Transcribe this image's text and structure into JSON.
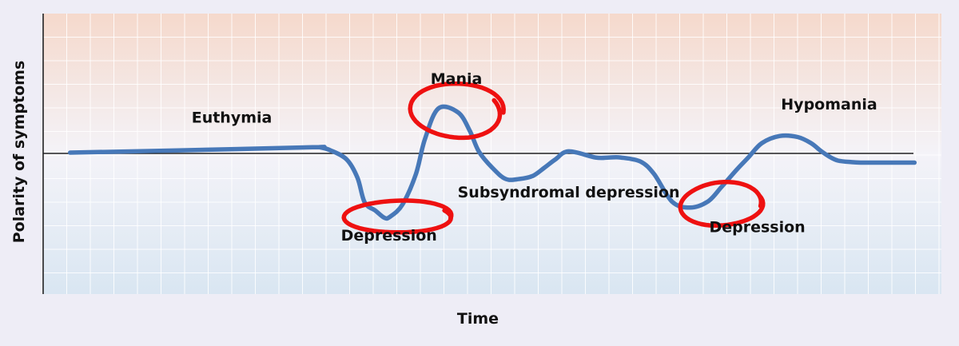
{
  "chart_data": {
    "type": "line",
    "xlabel": "Time",
    "ylabel": "Polarity of symptoms",
    "xlim": [
      0,
      100
    ],
    "ylim": [
      -100,
      100
    ],
    "grid": true,
    "background_gradient": {
      "top": "#f5d9cc",
      "middle": "#f4f3f8",
      "bottom": "#d9e6f2"
    },
    "series": [
      {
        "color": "#4778b8",
        "x": [
          3,
          15,
          30,
          30.8,
          32,
          33.8,
          35,
          35.8,
          37,
          38,
          38.6,
          40,
          41.5,
          42.5,
          44,
          46.2,
          47.5,
          48.5,
          50,
          51.5,
          53,
          54.5,
          55.8,
          57,
          58.5,
          61.5,
          63,
          64.3,
          66.5,
          68,
          70,
          72,
          74,
          75.5,
          77.2,
          78.5,
          80,
          82,
          84,
          85.5,
          86.5,
          87.5,
          88.5,
          90,
          91,
          92.5,
          95,
          97
        ],
        "y": [
          0.8,
          3,
          6,
          6,
          3,
          -6,
          -24,
          -48,
          -56,
          -63,
          -62,
          -50,
          -20,
          14,
          44,
          40,
          22,
          2,
          -14,
          -25,
          -25,
          -22,
          -14,
          -6,
          2,
          -4,
          -4,
          -4,
          -8,
          -20,
          -47,
          -53,
          -47,
          -33,
          -16,
          -4,
          10,
          17,
          16,
          10,
          3,
          -3,
          -7,
          -8.5,
          -9,
          -9,
          -9,
          -9
        ]
      }
    ],
    "annotations": [
      {
        "text": "Euthymia",
        "x": 21,
        "y": 30
      },
      {
        "text": "Mania",
        "x": 46,
        "y": 68
      },
      {
        "text": "Depression",
        "x": 38.5,
        "y": -85
      },
      {
        "text": "Subsyndromal depression",
        "x": 58.5,
        "y": -43
      },
      {
        "text": "Depression",
        "x": 79.5,
        "y": -77
      },
      {
        "text": "Hypomania",
        "x": 87.5,
        "y": 43
      }
    ],
    "highlight_marks": [
      {
        "x": 46,
        "y": 42,
        "rx": 4.8,
        "ry": 27,
        "color": "#ee1111"
      },
      {
        "x": 39.5,
        "y": -62,
        "rx": 5.6,
        "ry": 16,
        "color": "#ee1111"
      },
      {
        "x": 75.5,
        "y": -50,
        "rx": 4.4,
        "ry": 21,
        "color": "#ee1111"
      }
    ]
  }
}
